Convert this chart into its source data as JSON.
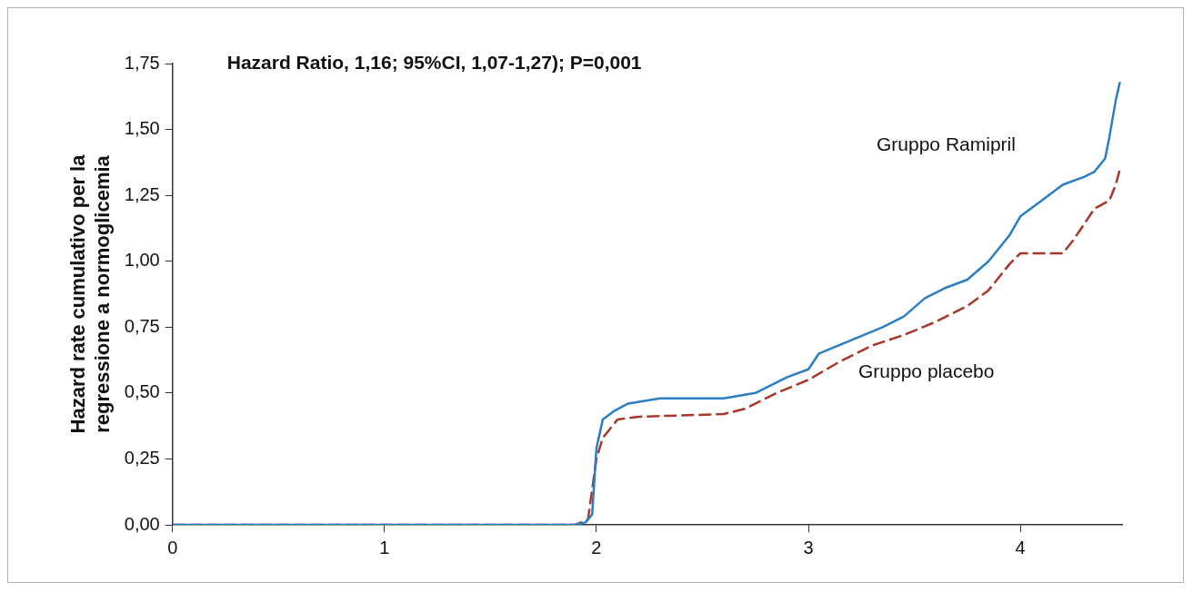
{
  "chart_data": {
    "type": "line",
    "title": "Hazard Ratio, 1,16; 95%CI, 1,07-1,27); P=0,001",
    "ylabel": "Hazard rate cumulativo per la\nregressione a normoglicemia",
    "xlim": [
      0,
      4.48
    ],
    "xticks": [
      0,
      1,
      2,
      3,
      4
    ],
    "ylim": [
      0,
      1.75
    ],
    "yticks": [
      {
        "value": 0,
        "label": "0,00"
      },
      {
        "value": 0.25,
        "label": "0,25"
      },
      {
        "value": 0.5,
        "label": "0,50"
      },
      {
        "value": 0.75,
        "label": "0,75"
      },
      {
        "value": 1,
        "label": "1,00"
      },
      {
        "value": 1.25,
        "label": "1,25"
      },
      {
        "value": 1.5,
        "label": "1,50"
      },
      {
        "value": 1.75,
        "label": "1,75"
      }
    ],
    "grid": false,
    "legend": false,
    "marker": "none",
    "series": [
      {
        "name": "Gruppo Ramipril",
        "color": "#2a7fc4",
        "line_style": "solid",
        "x": [
          0,
          1.9,
          1.95,
          1.98,
          2.0,
          2.03,
          2.08,
          2.15,
          2.3,
          2.6,
          2.75,
          2.9,
          3.0,
          3.05,
          3.2,
          3.35,
          3.45,
          3.55,
          3.65,
          3.75,
          3.85,
          3.95,
          4.0,
          4.1,
          4.2,
          4.3,
          4.35,
          4.4,
          4.42,
          4.45,
          4.47
        ],
        "values": [
          0,
          0,
          0.01,
          0.04,
          0.29,
          0.4,
          0.43,
          0.46,
          0.48,
          0.48,
          0.5,
          0.56,
          0.59,
          0.65,
          0.7,
          0.75,
          0.79,
          0.86,
          0.9,
          0.93,
          1.0,
          1.1,
          1.17,
          1.23,
          1.29,
          1.32,
          1.34,
          1.39,
          1.47,
          1.61,
          1.68
        ]
      },
      {
        "name": "Gruppo placebo",
        "color": "#a8372a",
        "line_style": "dashed",
        "x": [
          0,
          1.9,
          1.96,
          2.0,
          2.03,
          2.1,
          2.2,
          2.6,
          2.7,
          2.85,
          3.0,
          3.15,
          3.3,
          3.45,
          3.6,
          3.75,
          3.85,
          3.95,
          4.0,
          4.2,
          4.25,
          4.35,
          4.42,
          4.45,
          4.47
        ],
        "values": [
          0,
          0,
          0.02,
          0.25,
          0.33,
          0.4,
          0.41,
          0.42,
          0.44,
          0.5,
          0.55,
          0.62,
          0.68,
          0.72,
          0.77,
          0.83,
          0.89,
          0.99,
          1.03,
          1.03,
          1.08,
          1.2,
          1.23,
          1.29,
          1.35
        ]
      }
    ]
  }
}
